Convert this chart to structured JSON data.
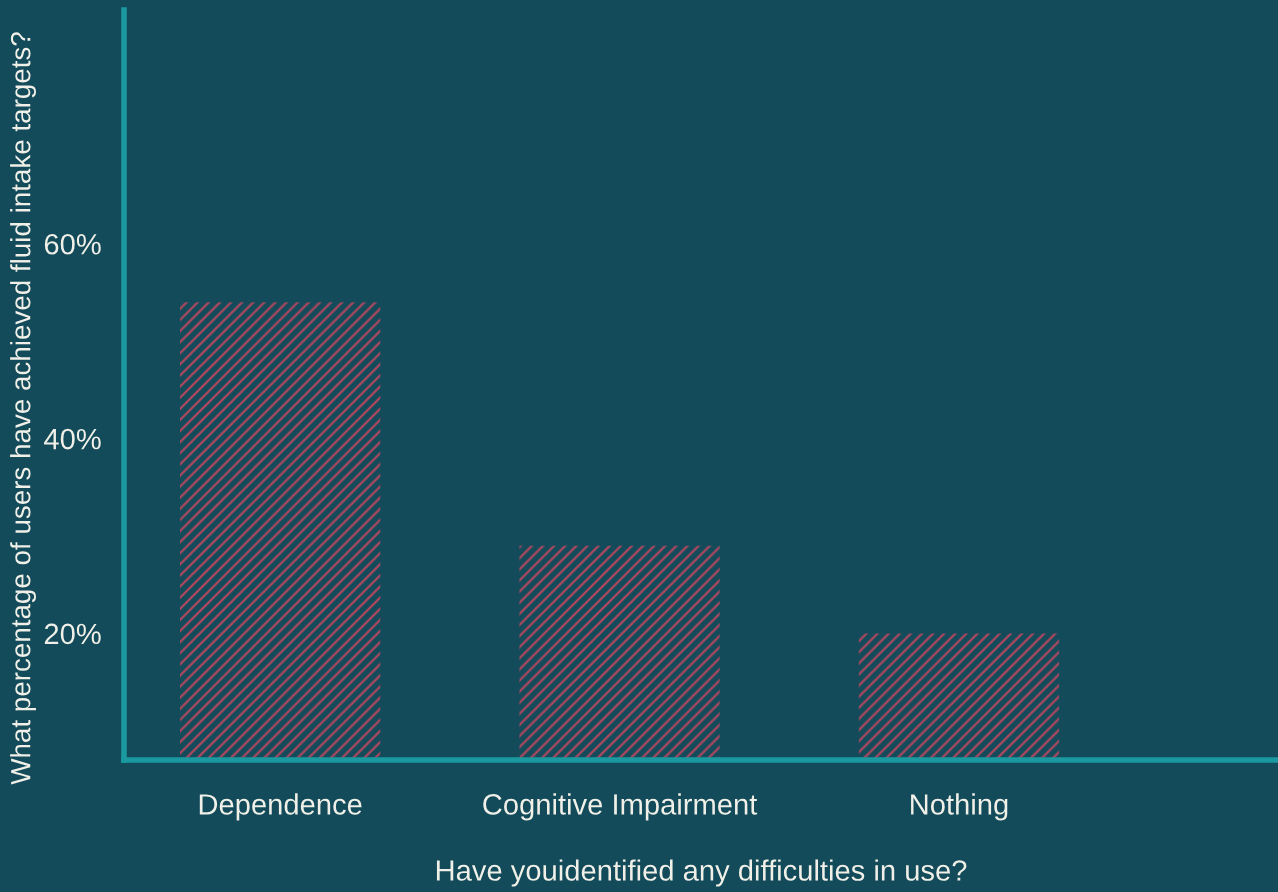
{
  "chart_data": {
    "type": "bar",
    "xlabel": "Have youidentified any difficulties in use?",
    "ylabel": "What percentage of users have achieved fluid intake targets?",
    "categories": [
      "Dependence",
      "Cognitive Impairment",
      "Nothing"
    ],
    "values": [
      54,
      29,
      20
    ],
    "color": "#b0475e",
    "ylim": [
      7,
      84
    ],
    "yticks": [
      {
        "value": 20,
        "label": "20%"
      },
      {
        "value": 40,
        "label": "40%"
      },
      {
        "value": 60,
        "label": "60%"
      }
    ],
    "grid": false
  }
}
